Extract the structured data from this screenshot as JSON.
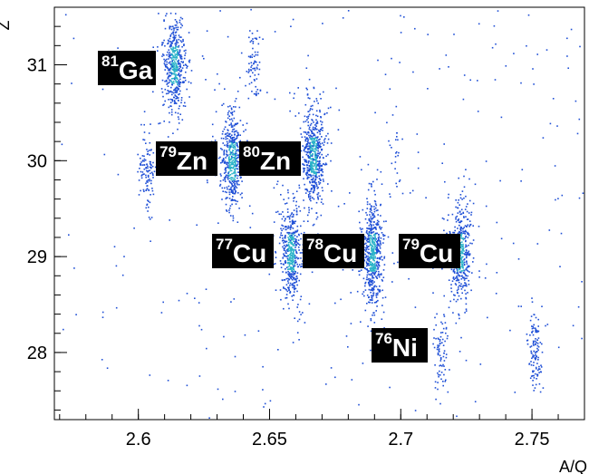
{
  "chart_data": {
    "type": "scatter",
    "title": "",
    "xlabel": "A/Q",
    "ylabel": "Z",
    "xlim": [
      2.568,
      2.77
    ],
    "ylim": [
      27.3,
      31.6
    ],
    "grid": false,
    "x_ticks": [
      {
        "value": 2.6,
        "label": "2.6"
      },
      {
        "value": 2.65,
        "label": "2.65"
      },
      {
        "value": 2.7,
        "label": "2.7"
      },
      {
        "value": 2.75,
        "label": "2.75"
      }
    ],
    "y_ticks": [
      {
        "value": 28,
        "label": "28"
      },
      {
        "value": 29,
        "label": "29"
      },
      {
        "value": 30,
        "label": "30"
      },
      {
        "value": 31,
        "label": "31"
      }
    ],
    "point_color": "#1f4fd6",
    "core_color": "#2bb3c8",
    "clusters": [
      {
        "mass": "81",
        "element": "Ga",
        "x": 2.6135,
        "y": 31.0,
        "n": 420
      },
      {
        "mass": "79",
        "element": "Zn",
        "x": 2.6355,
        "y": 30.0,
        "n": 420
      },
      {
        "mass": "80",
        "element": "Zn",
        "x": 2.6665,
        "y": 30.05,
        "n": 520
      },
      {
        "mass": "77",
        "element": "Cu",
        "x": 2.658,
        "y": 29.05,
        "n": 420
      },
      {
        "mass": "78",
        "element": "Cu",
        "x": 2.689,
        "y": 29.05,
        "n": 520
      },
      {
        "mass": "79",
        "element": "Cu",
        "x": 2.7225,
        "y": 29.05,
        "n": 400
      },
      {
        "mass": "76",
        "element": "Ni",
        "x": 2.6895,
        "y": 28.1,
        "n": 0
      }
    ],
    "minor_groups": [
      {
        "x": 2.644,
        "y": 31.0,
        "n": 70
      },
      {
        "x": 2.603,
        "y": 29.9,
        "n": 110
      },
      {
        "x": 2.715,
        "y": 28.0,
        "n": 80
      },
      {
        "x": 2.751,
        "y": 28.05,
        "n": 120
      },
      {
        "x": 2.698,
        "y": 30.0,
        "n": 25
      }
    ]
  }
}
